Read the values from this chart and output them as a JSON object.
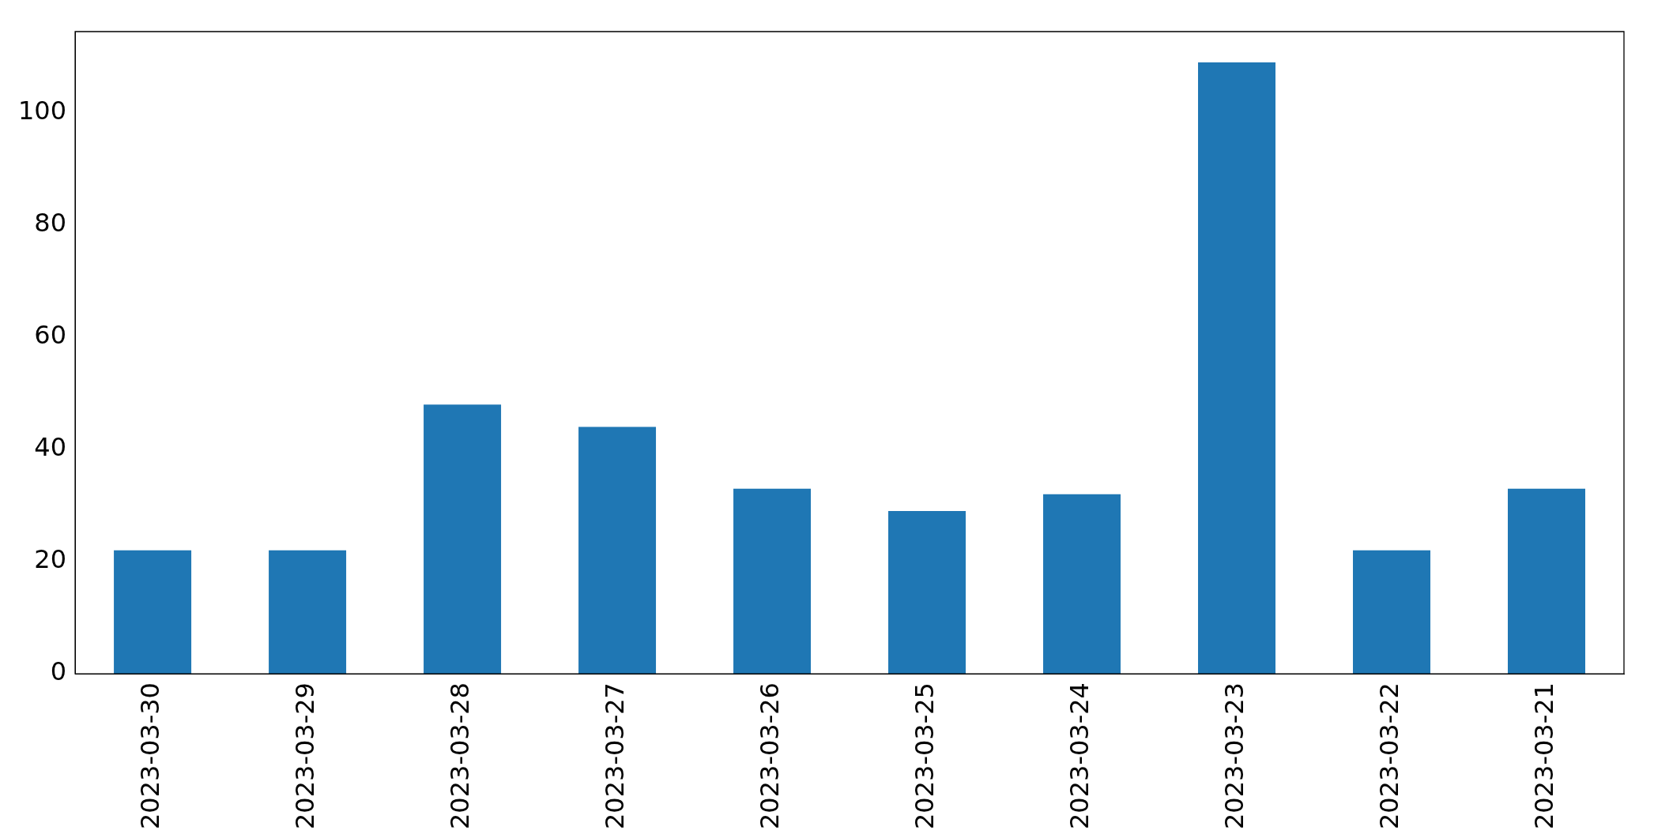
{
  "chart_data": {
    "type": "bar",
    "categories": [
      "2023-03-30",
      "2023-03-29",
      "2023-03-28",
      "2023-03-27",
      "2023-03-26",
      "2023-03-25",
      "2023-03-24",
      "2023-03-23",
      "2023-03-22",
      "2023-03-21"
    ],
    "values": [
      22,
      22,
      48,
      44,
      33,
      29,
      32,
      109,
      22,
      33
    ],
    "color": "#1f77b4",
    "ylim": [
      0,
      114.5
    ],
    "yticks": [
      0,
      20,
      40,
      60,
      80,
      100
    ],
    "grid": false,
    "legend": false
  }
}
